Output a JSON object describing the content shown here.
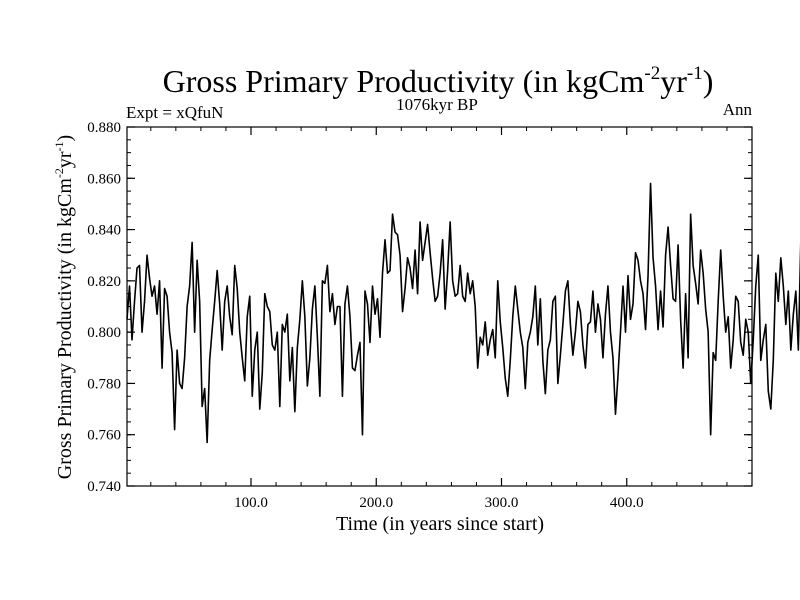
{
  "chart_data": {
    "type": "line",
    "title_main": "Gross Primary Productivity (in kgCm",
    "title_sup1": "-2",
    "title_mid": "yr",
    "title_sup2": "-1",
    "title_end": ")",
    "subtitle_center": "1076kyr BP",
    "subtitle_left": "Expt = xQfuN",
    "subtitle_right": "Ann",
    "xlabel": "Time (in years since start)",
    "ylabel_main": "Gross Primary Productivity (in kgCm",
    "ylabel_sup1": "-2",
    "ylabel_mid": "yr",
    "ylabel_sup2": "-1",
    "ylabel_end": ")",
    "xlim": [
      1,
      500
    ],
    "ylim": [
      0.74,
      0.88
    ],
    "x_ticks": [
      100,
      200,
      300,
      400
    ],
    "x_tick_labels": [
      "100.0",
      "200.0",
      "300.0",
      "400.0"
    ],
    "y_ticks": [
      0.74,
      0.76,
      0.78,
      0.8,
      0.82,
      0.84,
      0.86,
      0.88
    ],
    "y_tick_labels": [
      "0.740",
      "0.760",
      "0.780",
      "0.800",
      "0.820",
      "0.840",
      "0.860",
      "0.880"
    ],
    "series": [
      {
        "name": "GPP annual",
        "x_start": 1,
        "x_step": 2,
        "values": [
          0.805,
          0.818,
          0.797,
          0.812,
          0.825,
          0.826,
          0.8,
          0.812,
          0.83,
          0.821,
          0.814,
          0.818,
          0.807,
          0.82,
          0.786,
          0.817,
          0.814,
          0.8,
          0.792,
          0.762,
          0.793,
          0.78,
          0.778,
          0.79,
          0.81,
          0.818,
          0.835,
          0.8,
          0.828,
          0.812,
          0.771,
          0.778,
          0.757,
          0.789,
          0.801,
          0.812,
          0.824,
          0.811,
          0.793,
          0.812,
          0.818,
          0.806,
          0.799,
          0.826,
          0.817,
          0.8,
          0.79,
          0.781,
          0.806,
          0.814,
          0.775,
          0.793,
          0.8,
          0.77,
          0.784,
          0.815,
          0.81,
          0.808,
          0.795,
          0.793,
          0.8,
          0.771,
          0.803,
          0.8,
          0.807,
          0.781,
          0.794,
          0.769,
          0.794,
          0.805,
          0.82,
          0.806,
          0.779,
          0.79,
          0.809,
          0.818,
          0.798,
          0.775,
          0.82,
          0.819,
          0.826,
          0.808,
          0.815,
          0.803,
          0.81,
          0.81,
          0.775,
          0.811,
          0.818,
          0.806,
          0.786,
          0.785,
          0.791,
          0.796,
          0.76,
          0.816,
          0.811,
          0.796,
          0.818,
          0.807,
          0.813,
          0.798,
          0.823,
          0.836,
          0.823,
          0.824,
          0.846,
          0.839,
          0.838,
          0.83,
          0.808,
          0.817,
          0.829,
          0.825,
          0.817,
          0.832,
          0.815,
          0.843,
          0.828,
          0.835,
          0.842,
          0.831,
          0.821,
          0.812,
          0.814,
          0.823,
          0.836,
          0.809,
          0.824,
          0.843,
          0.82,
          0.814,
          0.815,
          0.826,
          0.814,
          0.812,
          0.823,
          0.815,
          0.82,
          0.81,
          0.786,
          0.798,
          0.795,
          0.804,
          0.791,
          0.797,
          0.801,
          0.79,
          0.82,
          0.804,
          0.794,
          0.782,
          0.775,
          0.789,
          0.806,
          0.818,
          0.809,
          0.8,
          0.794,
          0.778,
          0.796,
          0.8,
          0.806,
          0.818,
          0.795,
          0.813,
          0.789,
          0.776,
          0.793,
          0.797,
          0.812,
          0.814,
          0.78,
          0.791,
          0.803,
          0.816,
          0.82,
          0.803,
          0.791,
          0.8,
          0.812,
          0.808,
          0.795,
          0.786,
          0.803,
          0.804,
          0.816,
          0.8,
          0.811,
          0.805,
          0.79,
          0.807,
          0.818,
          0.8,
          0.79,
          0.768,
          0.783,
          0.8,
          0.818,
          0.8,
          0.822,
          0.805,
          0.811,
          0.831,
          0.828,
          0.82,
          0.815,
          0.801,
          0.822,
          0.858,
          0.829,
          0.818,
          0.801,
          0.816,
          0.802,
          0.83,
          0.841,
          0.826,
          0.813,
          0.812,
          0.834,
          0.805,
          0.786,
          0.815,
          0.79,
          0.846,
          0.826,
          0.819,
          0.811,
          0.832,
          0.823,
          0.809,
          0.8,
          0.76,
          0.792,
          0.789,
          0.812,
          0.832,
          0.814,
          0.8,
          0.806,
          0.786,
          0.797,
          0.814,
          0.812,
          0.796,
          0.791,
          0.805,
          0.8,
          0.78,
          0.797,
          0.818,
          0.83,
          0.789,
          0.797,
          0.803,
          0.777,
          0.77,
          0.789,
          0.823,
          0.812,
          0.829,
          0.818,
          0.803,
          0.816,
          0.793,
          0.807,
          0.816,
          0.793,
          0.836,
          0.808,
          0.826,
          0.803,
          0.779,
          0.79,
          0.799,
          0.825,
          0.806,
          0.794,
          0.82,
          0.807,
          0.787,
          0.816,
          0.803,
          0.777,
          0.795,
          0.812,
          0.841,
          0.827,
          0.814,
          0.857,
          0.836,
          0.802,
          0.783,
          0.8,
          0.821,
          0.82,
          0.81,
          0.812,
          0.798,
          0.79,
          0.771,
          0.776,
          0.789,
          0.812,
          0.829,
          0.818,
          0.811,
          0.792,
          0.818,
          0.802,
          0.813,
          0.797,
          0.805,
          0.827,
          0.838,
          0.805,
          0.81,
          0.796,
          0.815,
          0.803,
          0.772,
          0.769,
          0.813,
          0.809,
          0.817,
          0.805,
          0.802,
          0.813,
          0.8,
          0.804,
          0.823,
          0.822,
          0.81,
          0.836,
          0.814,
          0.818,
          0.804,
          0.802,
          0.814,
          0.812,
          0.797,
          0.8,
          0.83,
          0.817,
          0.81,
          0.786,
          0.816,
          0.826,
          0.809,
          0.8,
          0.832,
          0.807,
          0.818,
          0.791,
          0.796,
          0.784,
          0.808,
          0.801,
          0.778,
          0.8,
          0.814,
          0.808,
          0.826,
          0.817,
          0.815,
          0.802,
          0.822,
          0.843,
          0.831,
          0.82,
          0.807,
          0.783,
          0.814,
          0.828,
          0.8,
          0.803,
          0.812,
          0.797,
          0.817,
          0.807,
          0.831,
          0.788,
          0.8,
          0.813,
          0.786,
          0.807,
          0.852,
          0.805,
          0.814,
          0.829,
          0.802,
          0.81,
          0.823,
          0.814,
          0.826,
          0.846,
          0.81,
          0.832,
          0.844,
          0.818,
          0.813,
          0.793,
          0.784,
          0.815,
          0.823,
          0.862,
          0.851,
          0.838,
          0.828,
          0.808,
          0.801,
          0.79,
          0.788,
          0.81,
          0.816,
          0.803,
          0.818
        ]
      }
    ]
  }
}
